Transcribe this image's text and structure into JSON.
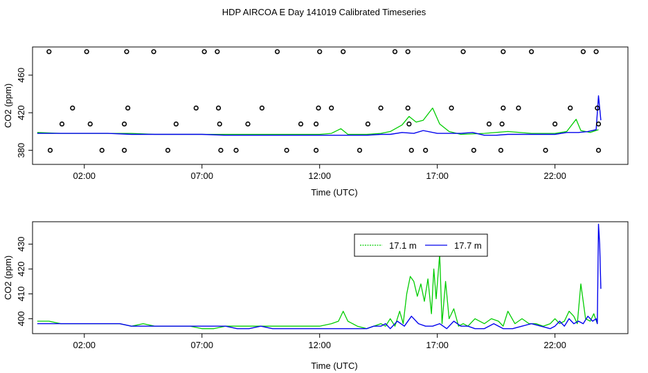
{
  "title": "HDP AIRCOA E  Day 141019  Calibrated Timeseries",
  "colors": {
    "green": "#00cc00",
    "blue": "#0000ee",
    "points": "#000000"
  },
  "x_ticks": [
    "02:00",
    "07:00",
    "12:00",
    "17:00",
    "22:00"
  ],
  "chart_data": [
    {
      "type": "scatter",
      "title": "",
      "xlabel": "Time (UTC)",
      "ylabel": "CO2 (ppm)",
      "xlim": [
        -0.2,
        25.1
      ],
      "ylim": [
        365,
        490
      ],
      "yticks": [
        380,
        420,
        460
      ],
      "x_ticks": [
        "02:00",
        "07:00",
        "12:00",
        "17:00",
        "22:00"
      ],
      "grid": false,
      "points": {
        "x": [
          0.5,
          2.1,
          3.8,
          4.95,
          7.1,
          7.65,
          10.2,
          12.0,
          13.0,
          15.2,
          15.75,
          18.1,
          19.8,
          21.0,
          23.2,
          23.75,
          1.5,
          3.85,
          6.75,
          7.7,
          9.55,
          11.95,
          12.5,
          14.6,
          15.75,
          17.6,
          19.8,
          20.45,
          22.65,
          23.8,
          1.05,
          2.25,
          3.7,
          5.9,
          7.75,
          8.95,
          11.2,
          11.85,
          14.05,
          15.8,
          19.2,
          19.75,
          22.0,
          23.85,
          0.55,
          2.75,
          3.7,
          5.55,
          7.8,
          8.45,
          10.6,
          11.85,
          13.7,
          15.9,
          16.5,
          18.55,
          19.7,
          21.6,
          23.85
        ],
        "y": [
          485,
          485,
          485,
          485,
          485,
          485,
          485,
          485,
          485,
          485,
          485,
          485,
          485,
          485,
          485,
          485,
          425,
          425,
          425,
          425,
          425,
          425,
          425,
          425,
          425,
          425,
          425,
          425,
          425,
          425,
          408,
          408,
          408,
          408,
          408,
          408,
          408,
          408,
          408,
          408,
          408,
          408,
          408,
          408,
          380,
          380,
          380,
          380,
          380,
          380,
          380,
          380,
          380,
          380,
          380,
          380,
          380,
          380,
          380
        ]
      },
      "series": [
        {
          "name": "17.1 m",
          "color": "#00cc00",
          "x": [
            0,
            1,
            2,
            3,
            4,
            5,
            6,
            7,
            8,
            9,
            10,
            11,
            12,
            12.5,
            12.9,
            13.2,
            14,
            14.6,
            15,
            15.5,
            15.8,
            16.1,
            16.4,
            16.8,
            17.1,
            17.5,
            18,
            19,
            20,
            21,
            22,
            22.5,
            22.9,
            23.1,
            23.5,
            23.85
          ],
          "y": [
            399,
            398,
            398,
            398,
            398,
            397,
            397,
            397,
            397,
            397,
            397,
            397,
            397,
            398,
            403,
            397,
            397,
            398,
            400,
            407,
            416,
            410,
            412,
            425,
            408,
            400,
            397,
            398,
            400,
            398,
            398,
            400,
            413,
            401,
            399,
            402
          ]
        },
        {
          "name": "17.7 m",
          "color": "#0000ee",
          "x": [
            0,
            1,
            2,
            3,
            4,
            5,
            6,
            7,
            8,
            9,
            10,
            11,
            12,
            12.5,
            13,
            14,
            14.6,
            15,
            15.5,
            16,
            16.4,
            17,
            17.5,
            18,
            18.5,
            19,
            19.5,
            20,
            21,
            22,
            22.5,
            23,
            23.4,
            23.75,
            23.85,
            23.95
          ],
          "y": [
            398,
            398,
            398,
            398,
            397,
            397,
            397,
            397,
            396,
            396,
            396,
            396,
            396,
            396,
            396,
            396,
            397,
            397,
            399,
            398,
            401,
            398,
            398,
            398,
            399,
            396,
            396,
            397,
            397,
            397,
            399,
            399,
            400,
            402,
            438,
            412
          ]
        }
      ]
    },
    {
      "type": "line",
      "title": "",
      "xlabel": "Time (UTC)",
      "ylabel": "CO2 (ppm)",
      "xlim": [
        -0.2,
        25.1
      ],
      "ylim": [
        394,
        439
      ],
      "yticks": [
        400,
        410,
        420,
        430
      ],
      "x_ticks": [
        "02:00",
        "07:00",
        "12:00",
        "17:00",
        "22:00"
      ],
      "grid": false,
      "legend": {
        "placement": "top-center",
        "entries": [
          "17.1 m",
          "17.7 m"
        ]
      },
      "series": [
        {
          "name": "17.1 m",
          "color": "#00cc00",
          "x": [
            0,
            0.5,
            1,
            1.5,
            2,
            2.5,
            3,
            3.5,
            4,
            4.5,
            5,
            5.5,
            6,
            6.5,
            7,
            7.5,
            8,
            8.5,
            9,
            9.5,
            10,
            10.5,
            11,
            11.5,
            12,
            12.5,
            12.8,
            13.0,
            13.2,
            13.6,
            14.0,
            14.3,
            14.6,
            14.8,
            15.0,
            15.2,
            15.4,
            15.55,
            15.7,
            15.85,
            16.0,
            16.15,
            16.3,
            16.45,
            16.6,
            16.75,
            16.85,
            16.95,
            17.1,
            17.2,
            17.35,
            17.5,
            17.7,
            17.9,
            18.1,
            18.3,
            18.6,
            19.0,
            19.3,
            19.6,
            19.8,
            20.0,
            20.3,
            20.6,
            20.9,
            21.2,
            21.5,
            21.8,
            22.0,
            22.2,
            22.4,
            22.6,
            22.8,
            22.95,
            23.1,
            23.3,
            23.5,
            23.65,
            23.8
          ],
          "y": [
            399,
            399,
            398,
            398,
            398,
            398,
            398,
            398,
            397,
            398,
            397,
            397,
            397,
            397,
            396,
            396,
            397,
            397,
            397,
            397,
            397,
            397,
            397,
            397,
            397,
            398,
            399,
            403,
            399,
            397,
            396,
            397,
            398,
            397,
            400,
            397,
            403,
            398,
            410,
            417,
            415,
            409,
            414,
            407,
            416,
            402,
            420,
            408,
            426,
            398,
            415,
            400,
            404,
            397,
            398,
            397,
            400,
            398,
            400,
            399,
            397,
            403,
            398,
            400,
            398,
            398,
            397,
            398,
            400,
            398,
            399,
            403,
            401,
            398,
            414,
            400,
            399,
            402,
            398
          ]
        },
        {
          "name": "17.7 m",
          "color": "#0000ee",
          "x": [
            0,
            0.5,
            1,
            1.5,
            2,
            2.5,
            3,
            3.5,
            4,
            4.5,
            5,
            5.5,
            6,
            6.5,
            7,
            7.5,
            8,
            8.5,
            9,
            9.5,
            10,
            10.5,
            11,
            11.5,
            12,
            12.5,
            13,
            13.5,
            14,
            14.3,
            14.6,
            14.8,
            15.0,
            15.3,
            15.6,
            15.9,
            16.2,
            16.5,
            16.8,
            17.1,
            17.4,
            17.7,
            18.0,
            18.3,
            18.6,
            19.0,
            19.4,
            19.8,
            20.2,
            20.6,
            21.0,
            21.4,
            21.8,
            22.0,
            22.2,
            22.4,
            22.6,
            22.8,
            23.0,
            23.2,
            23.4,
            23.6,
            23.75,
            23.8,
            23.85,
            23.9,
            23.95
          ],
          "y": [
            398,
            398,
            398,
            398,
            398,
            398,
            398,
            398,
            397,
            397,
            397,
            397,
            397,
            397,
            397,
            397,
            397,
            396,
            396,
            397,
            396,
            396,
            396,
            396,
            396,
            396,
            396,
            396,
            396,
            397,
            397,
            398,
            396,
            399,
            397,
            401,
            398,
            397,
            397,
            398,
            396,
            399,
            397,
            397,
            396,
            396,
            398,
            396,
            396,
            397,
            398,
            397,
            396,
            397,
            399,
            397,
            400,
            398,
            399,
            398,
            401,
            399,
            400,
            398,
            438,
            430,
            412
          ]
        }
      ]
    }
  ]
}
